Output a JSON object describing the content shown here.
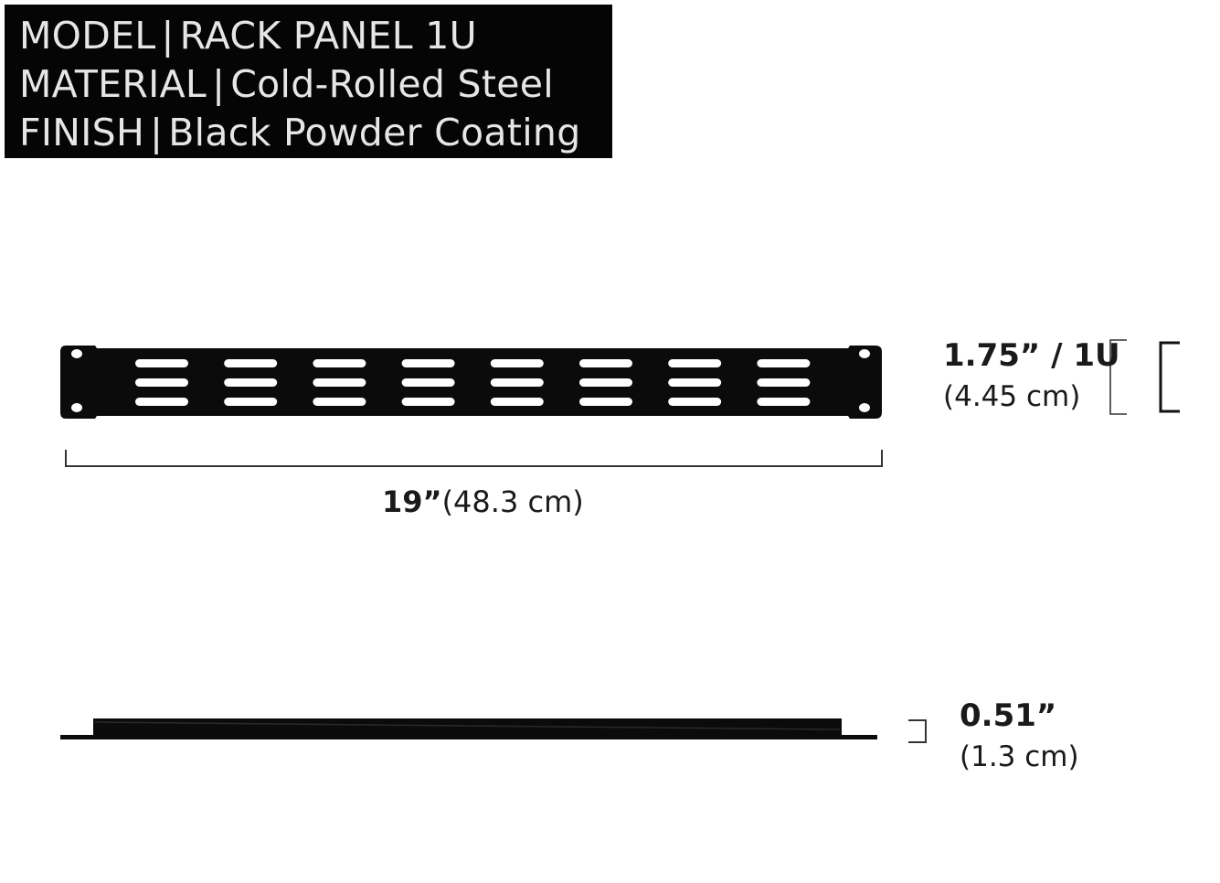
{
  "specs": [
    {
      "key": "MODEL",
      "separator": "|",
      "value": "RACK PANEL 1U"
    },
    {
      "key": "MATERIAL",
      "separator": "|",
      "value": "Cold-Rolled Steel"
    },
    {
      "key": "FINISH",
      "separator": "|",
      "value": "Black Powder Coating"
    }
  ],
  "dimensions": {
    "height_primary": "1.75” / 1U",
    "height_secondary": "(4.45 cm)",
    "width_primary": "19”",
    "width_secondary": "(48.3 cm)",
    "depth_primary": "0.51”",
    "depth_secondary": "(1.3 cm)"
  },
  "panel": {
    "color": "#0b0b0b",
    "vent_columns": 8,
    "vent_rows": 3
  }
}
